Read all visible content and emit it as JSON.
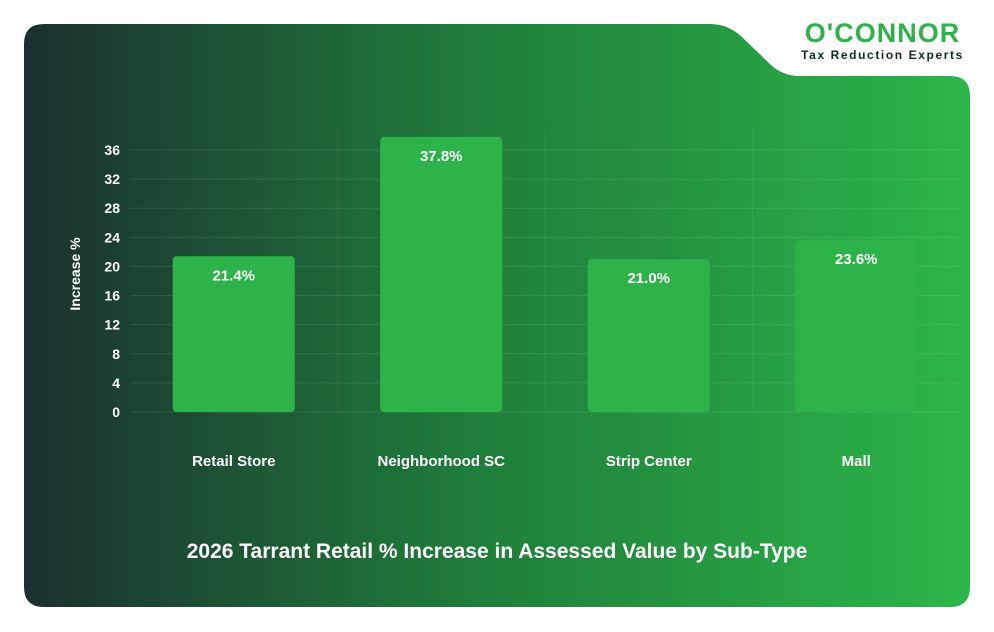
{
  "brand": {
    "name": "O'CONNOR",
    "tagline": "Tax Reduction Experts"
  },
  "colors": {
    "bar": "#2eb34b",
    "card_dark": "#1b2f2f",
    "card_light": "#2cb64a",
    "brand_green": "#2db34a"
  },
  "chart_data": {
    "type": "bar",
    "title": "2026 Tarrant Retail % Increase in Assessed Value by Sub-Type",
    "ylabel": "Increase %",
    "xlabel": "",
    "categories": [
      "Retail Store",
      "Neighborhood SC",
      "Strip Center",
      "Mall"
    ],
    "values": [
      21.4,
      37.8,
      21.0,
      23.6
    ],
    "value_labels": [
      "21.4%",
      "37.8%",
      "21.0%",
      "23.6%"
    ],
    "ylim": [
      0,
      36
    ],
    "yticks": [
      "0",
      "4",
      "8",
      "12",
      "16",
      "20",
      "24",
      "28",
      "32",
      "36"
    ],
    "grid": true,
    "legend": "none"
  }
}
